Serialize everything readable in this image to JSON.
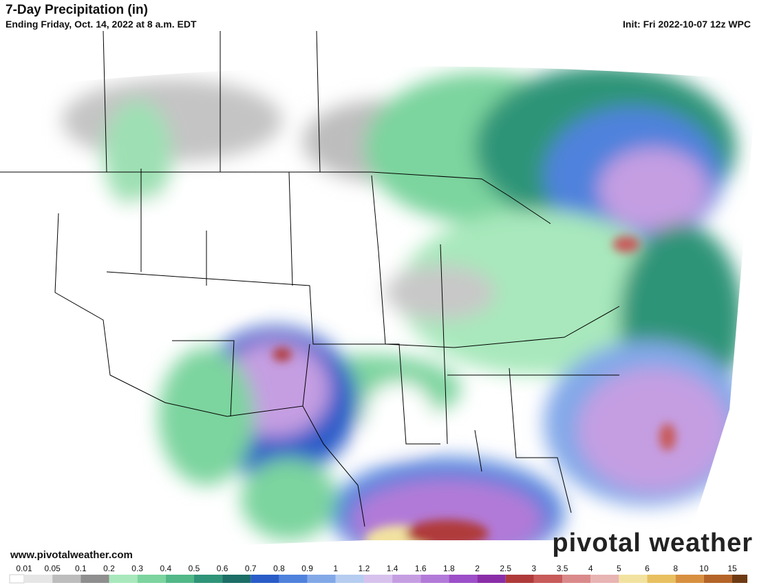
{
  "header": {
    "title": "7-Day Precipitation (in)",
    "subtitle": "Ending Friday, Oct. 14, 2022 at 8 a.m. EDT",
    "init": "Init: Fri 2022-10-07 12z WPC"
  },
  "footer": {
    "website": "www.pivotalweather.com",
    "brand": "pivotal weather"
  },
  "colorbar": {
    "labels": [
      0.01,
      0.05,
      0.1,
      0.2,
      0.3,
      0.4,
      0.5,
      0.6,
      0.7,
      0.8,
      0.9,
      1,
      1.2,
      1.4,
      1.6,
      1.8,
      2,
      2.5,
      3,
      3.5,
      4,
      5,
      6,
      8,
      10,
      15
    ],
    "colors": [
      "#e6e6e6",
      "#bdbdbd",
      "#8f8f8f",
      "#a8e8bc",
      "#7cd49e",
      "#52b888",
      "#2f9478",
      "#1c6e66",
      "#2a5cc8",
      "#4f82dc",
      "#82a8e8",
      "#b6ccf0",
      "#d6c2ec",
      "#c59ee2",
      "#b27ad8",
      "#9c4fc8",
      "#8a2ea8",
      "#b03a3a",
      "#c85a5a",
      "#da8a8a",
      "#e8b4b4",
      "#f2e2a0",
      "#e8c060",
      "#d89040",
      "#b46428",
      "#6e3a14"
    ]
  }
}
